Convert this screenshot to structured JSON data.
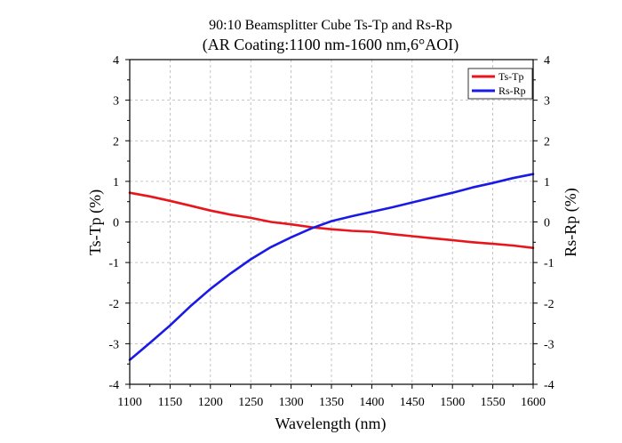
{
  "chart_data": {
    "type": "line",
    "title": "90:10 Beamsplitter Cube Ts-Tp and Rs-Rp",
    "subtitle": "(AR Coating:1100 nm-1600 nm,6°AOI)",
    "xlabel": "Wavelength (nm)",
    "ylabel_left": "Ts-Tp (%)",
    "ylabel_right": "Rs-Rp (%)",
    "xlim": [
      1100,
      1600
    ],
    "ylim": [
      -4,
      4
    ],
    "xticks": [
      "1100",
      "1150",
      "1200",
      "1250",
      "1300",
      "1350",
      "1400",
      "1450",
      "1500",
      "1550",
      "1600"
    ],
    "yticks": [
      "-4",
      "-3",
      "-2",
      "-1",
      "0",
      "1",
      "2",
      "3",
      "4"
    ],
    "grid": true,
    "legend_position": "top-right",
    "x": [
      1100,
      1125,
      1150,
      1175,
      1200,
      1225,
      1250,
      1275,
      1300,
      1325,
      1350,
      1375,
      1400,
      1425,
      1450,
      1475,
      1500,
      1525,
      1550,
      1575,
      1600
    ],
    "series": [
      {
        "name": "Ts-Tp",
        "color": "#e8161b",
        "values": [
          0.72,
          0.63,
          0.52,
          0.4,
          0.28,
          0.18,
          0.1,
          0.0,
          -0.06,
          -0.13,
          -0.18,
          -0.22,
          -0.24,
          -0.3,
          -0.35,
          -0.4,
          -0.45,
          -0.5,
          -0.54,
          -0.58,
          -0.64
        ]
      },
      {
        "name": "Rs-Rp",
        "color": "#1a1ae6",
        "values": [
          -3.4,
          -2.98,
          -2.55,
          -2.08,
          -1.65,
          -1.27,
          -0.92,
          -0.62,
          -0.38,
          -0.16,
          0.02,
          0.14,
          0.25,
          0.36,
          0.48,
          0.6,
          0.72,
          0.85,
          0.96,
          1.08,
          1.18
        ]
      }
    ]
  }
}
